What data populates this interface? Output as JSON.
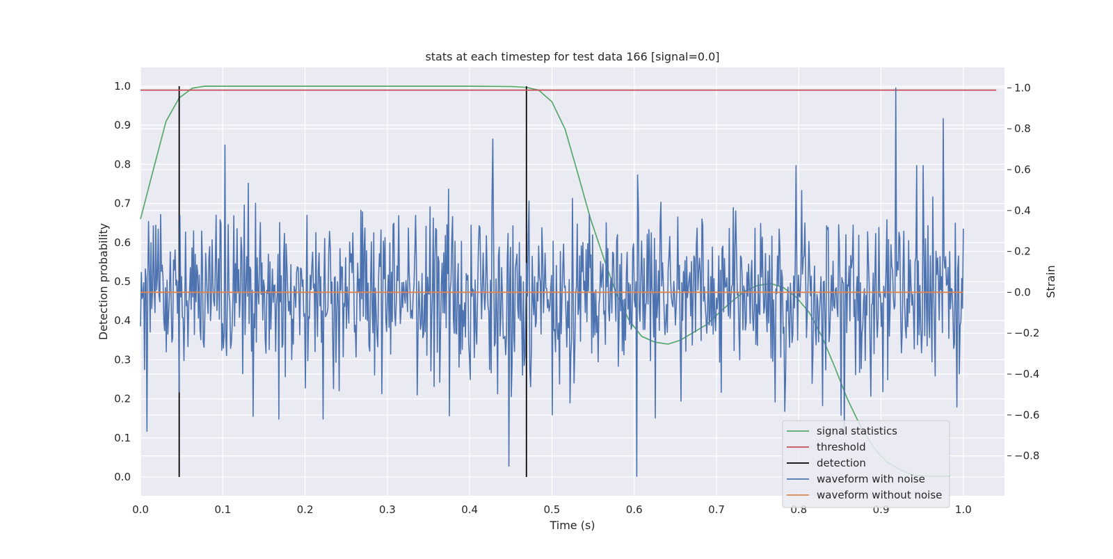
{
  "chart_data": {
    "type": "line",
    "title": "stats at each timestep for test data 166 [signal=0.0]",
    "xlabel": "Time (s)",
    "ylabel": "Detection probability",
    "y2label": "Strain",
    "xlim": [
      0.0,
      1.05
    ],
    "ylim": [
      -0.048,
      1.048
    ],
    "y2lim": [
      -0.995,
      1.1
    ],
    "xticks": [
      0.0,
      0.1,
      0.2,
      0.3,
      0.4,
      0.5,
      0.6,
      0.7,
      0.8,
      0.9,
      1.0
    ],
    "xtick_labels": [
      "0.0",
      "0.1",
      "0.2",
      "0.3",
      "0.4",
      "0.5",
      "0.6",
      "0.7",
      "0.8",
      "0.9",
      "1.0"
    ],
    "yticks": [
      0.0,
      0.1,
      0.2,
      0.3,
      0.4,
      0.5,
      0.6,
      0.7,
      0.8,
      0.9,
      1.0
    ],
    "ytick_labels": [
      "0.0",
      "0.1",
      "0.2",
      "0.3",
      "0.4",
      "0.5",
      "0.6",
      "0.7",
      "0.8",
      "0.9",
      "1.0"
    ],
    "y2ticks": [
      -0.8,
      -0.6,
      -0.4,
      -0.2,
      0.0,
      0.2,
      0.4,
      0.6,
      0.8,
      1.0
    ],
    "y2tick_labels": [
      "−0.8",
      "−0.6",
      "−0.4",
      "−0.2",
      "0.0",
      "0.2",
      "0.4",
      "0.6",
      "0.8",
      "1.0"
    ],
    "grid": true,
    "background": "#eaeaf2",
    "legend_position": "lower-right",
    "series": [
      {
        "name": "signal statistics",
        "color": "#55a868",
        "axis": "left",
        "x": [
          0.0,
          0.016,
          0.031,
          0.047,
          0.063,
          0.078,
          0.094,
          0.2,
          0.3,
          0.4,
          0.453,
          0.469,
          0.484,
          0.5,
          0.516,
          0.531,
          0.547,
          0.563,
          0.578,
          0.594,
          0.609,
          0.625,
          0.641,
          0.656,
          0.672,
          0.688,
          0.703,
          0.719,
          0.734,
          0.75,
          0.766,
          0.781,
          0.797,
          0.813,
          0.828,
          0.844,
          0.859,
          0.875,
          0.891,
          0.906,
          0.922,
          0.938,
          0.953,
          0.969,
          0.984
        ],
        "y": [
          0.66,
          0.79,
          0.91,
          0.97,
          0.995,
          1.0,
          1.0,
          1.0,
          1.0,
          1.0,
          0.999,
          0.997,
          0.99,
          0.96,
          0.89,
          0.78,
          0.66,
          0.56,
          0.47,
          0.4,
          0.36,
          0.345,
          0.34,
          0.35,
          0.37,
          0.39,
          0.42,
          0.45,
          0.475,
          0.49,
          0.495,
          0.485,
          0.46,
          0.42,
          0.36,
          0.28,
          0.2,
          0.13,
          0.075,
          0.04,
          0.02,
          0.005,
          0.002,
          0.002,
          0.002
        ]
      },
      {
        "name": "threshold",
        "color": "#c44e52",
        "axis": "left",
        "x": [
          0.0,
          1.04
        ],
        "y": [
          0.99,
          0.99
        ]
      },
      {
        "name": "detection",
        "color": "#000000",
        "axis": "left",
        "type": "vlines",
        "x": [
          0.047,
          0.469
        ],
        "y": [
          0.0,
          1.0
        ]
      },
      {
        "name": "waveform with noise",
        "color": "#4c72b0",
        "axis": "right",
        "x_range": [
          0.0,
          1.0
        ],
        "noise_seed": 166,
        "noise_sigma": 0.21,
        "highlights": [
          {
            "x": 0.918,
            "y": 1.0
          },
          {
            "x": 0.603,
            "y": -0.9
          },
          {
            "x": 0.448,
            "y": -0.85
          },
          {
            "x": 0.976,
            "y": 0.85
          },
          {
            "x": 0.103,
            "y": 0.72
          },
          {
            "x": 0.428,
            "y": 0.75
          },
          {
            "x": 0.855,
            "y": -0.7
          },
          {
            "x": 0.008,
            "y": -0.68
          }
        ]
      },
      {
        "name": "waveform without noise",
        "color": "#dd8452",
        "axis": "right",
        "x": [
          0.0,
          1.0
        ],
        "y": [
          0.0,
          0.0
        ]
      }
    ]
  }
}
